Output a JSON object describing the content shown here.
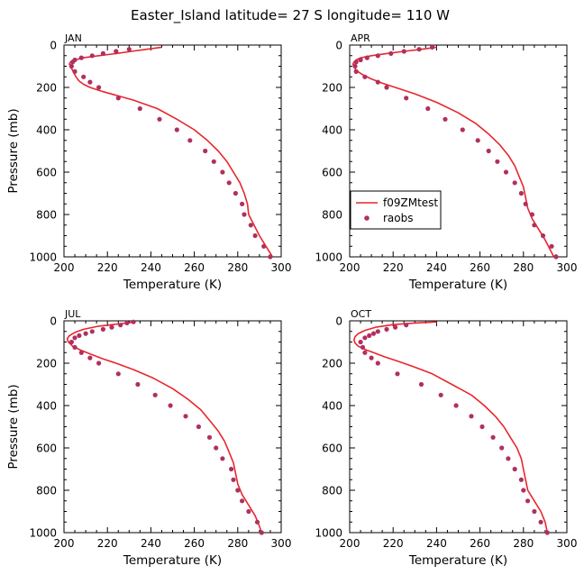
{
  "figure": {
    "title": "Easter_Island  latitude= 27 S longitude= 110 W",
    "colors": {
      "model": "#e8262b",
      "obs": "#b03060",
      "axes": "#000000"
    }
  },
  "chart_data": [
    {
      "type": "line",
      "title": "JAN",
      "xlabel": "Temperature (K)",
      "ylabel": "Pressure (mb)",
      "xlim": [
        200,
        300
      ],
      "ylim": [
        1000,
        0
      ],
      "xticks": [
        "200",
        "220",
        "240",
        "260",
        "280",
        "300"
      ],
      "yticks": [
        "0",
        "200",
        "400",
        "600",
        "800",
        "1000"
      ],
      "legend": null,
      "series": [
        {
          "kind": "line",
          "points": [
            [
              245,
              10
            ],
            [
              238,
              20
            ],
            [
              231,
              30
            ],
            [
              224,
              40
            ],
            [
              216,
              50
            ],
            [
              209,
              60
            ],
            [
              205,
              70
            ],
            [
              203,
              80
            ],
            [
              202.5,
              90
            ],
            [
              203,
              100
            ],
            [
              204,
              120
            ],
            [
              205.5,
              150
            ],
            [
              207,
              170
            ],
            [
              209,
              185
            ],
            [
              212,
              200
            ],
            [
              218,
              220
            ],
            [
              232,
              260
            ],
            [
              243,
              300
            ],
            [
              252,
              350
            ],
            [
              260,
              400
            ],
            [
              266,
              450
            ],
            [
              271,
              500
            ],
            [
              275,
              550
            ],
            [
              278,
              600
            ],
            [
              281,
              650
            ],
            [
              283,
              700
            ],
            [
              284.5,
              750
            ],
            [
              285,
              800
            ],
            [
              287.5,
              850
            ],
            [
              290,
              900
            ],
            [
              293,
              950
            ],
            [
              296,
              1000
            ]
          ]
        },
        {
          "kind": "scatter",
          "points": [
            [
              230,
              20
            ],
            [
              224,
              30
            ],
            [
              218,
              40
            ],
            [
              213,
              50
            ],
            [
              208,
              60
            ],
            [
              205,
              70
            ],
            [
              204,
              80
            ],
            [
              203.5,
              100
            ],
            [
              205,
              125
            ],
            [
              209,
              150
            ],
            [
              212,
              175
            ],
            [
              216,
              200
            ],
            [
              225,
              250
            ],
            [
              235,
              300
            ],
            [
              244,
              350
            ],
            [
              252,
              400
            ],
            [
              258,
              450
            ],
            [
              265,
              500
            ],
            [
              269,
              550
            ],
            [
              273,
              600
            ],
            [
              276,
              650
            ],
            [
              279,
              700
            ],
            [
              282,
              750
            ],
            [
              283,
              800
            ],
            [
              286,
              850
            ],
            [
              288,
              900
            ],
            [
              292,
              950
            ],
            [
              295,
              1000
            ]
          ]
        }
      ]
    },
    {
      "type": "line",
      "title": "APR",
      "xlabel": "Temperature (K)",
      "ylabel": "",
      "xlim": [
        200,
        300
      ],
      "ylim": [
        1000,
        0
      ],
      "xticks": [
        "200",
        "220",
        "240",
        "260",
        "280",
        "300"
      ],
      "yticks": [
        "0",
        "200",
        "400",
        "600",
        "800",
        "1000"
      ],
      "legend": {
        "placement": "bottom-left",
        "entries": [
          "f09ZMtest",
          "raobs"
        ]
      },
      "series": [
        {
          "name": "f09ZMtest",
          "kind": "line",
          "points": [
            [
              240,
              10
            ],
            [
              233,
              20
            ],
            [
              225,
              30
            ],
            [
              217,
              40
            ],
            [
              210,
              50
            ],
            [
              205,
              60
            ],
            [
              203,
              70
            ],
            [
              202,
              80
            ],
            [
              201.5,
              90
            ],
            [
              202,
              100
            ],
            [
              203,
              120
            ],
            [
              206,
              140
            ],
            [
              210,
              160
            ],
            [
              215,
              180
            ],
            [
              221,
              200
            ],
            [
              230,
              230
            ],
            [
              240,
              270
            ],
            [
              250,
              320
            ],
            [
              258,
              370
            ],
            [
              264,
              420
            ],
            [
              269,
              470
            ],
            [
              273,
              520
            ],
            [
              276,
              570
            ],
            [
              278,
              620
            ],
            [
              280,
              670
            ],
            [
              281,
              720
            ],
            [
              282,
              770
            ],
            [
              284,
              820
            ],
            [
              287,
              870
            ],
            [
              290,
              920
            ],
            [
              292.5,
              970
            ],
            [
              294,
              1000
            ]
          ]
        },
        {
          "name": "raobs",
          "kind": "scatter",
          "points": [
            [
              238,
              10
            ],
            [
              232,
              20
            ],
            [
              225,
              30
            ],
            [
              219,
              40
            ],
            [
              213,
              50
            ],
            [
              208,
              60
            ],
            [
              205,
              70
            ],
            [
              203,
              80
            ],
            [
              202.5,
              100
            ],
            [
              203,
              125
            ],
            [
              207,
              150
            ],
            [
              213,
              175
            ],
            [
              217,
              200
            ],
            [
              226,
              250
            ],
            [
              236,
              300
            ],
            [
              244,
              350
            ],
            [
              252,
              400
            ],
            [
              259,
              450
            ],
            [
              264,
              500
            ],
            [
              268,
              550
            ],
            [
              272,
              600
            ],
            [
              276,
              650
            ],
            [
              279,
              700
            ],
            [
              281,
              750
            ],
            [
              284,
              800
            ],
            [
              285,
              850
            ],
            [
              289,
              900
            ],
            [
              293,
              950
            ],
            [
              295,
              1000
            ]
          ]
        }
      ]
    },
    {
      "type": "line",
      "title": "JUL",
      "xlabel": "Temperature (K)",
      "ylabel": "Pressure (mb)",
      "xlim": [
        200,
        300
      ],
      "ylim": [
        1000,
        0
      ],
      "xticks": [
        "200",
        "220",
        "240",
        "260",
        "280",
        "300"
      ],
      "yticks": [
        "0",
        "200",
        "400",
        "600",
        "800",
        "1000"
      ],
      "legend": null,
      "series": [
        {
          "kind": "line",
          "points": [
            [
              233,
              5
            ],
            [
              225,
              15
            ],
            [
              216,
              25
            ],
            [
              209,
              40
            ],
            [
              205,
              55
            ],
            [
              202.5,
              70
            ],
            [
              201.5,
              85
            ],
            [
              202,
              100
            ],
            [
              204,
              120
            ],
            [
              208,
              140
            ],
            [
              213,
              160
            ],
            [
              218,
              180
            ],
            [
              224,
              200
            ],
            [
              232,
              230
            ],
            [
              241,
              270
            ],
            [
              250,
              320
            ],
            [
              257,
              370
            ],
            [
              263,
              420
            ],
            [
              267,
              470
            ],
            [
              271,
              520
            ],
            [
              274,
              570
            ],
            [
              276,
              620
            ],
            [
              278,
              670
            ],
            [
              279,
              720
            ],
            [
              280,
              770
            ],
            [
              282,
              820
            ],
            [
              285,
              870
            ],
            [
              288,
              920
            ],
            [
              290,
              970
            ],
            [
              291,
              1000
            ]
          ]
        },
        {
          "kind": "scatter",
          "points": [
            [
              232,
              5
            ],
            [
              229,
              10
            ],
            [
              226,
              20
            ],
            [
              222,
              30
            ],
            [
              218,
              40
            ],
            [
              213,
              50
            ],
            [
              210,
              60
            ],
            [
              207,
              70
            ],
            [
              205,
              80
            ],
            [
              203.5,
              100
            ],
            [
              205,
              125
            ],
            [
              208,
              150
            ],
            [
              212,
              175
            ],
            [
              216,
              200
            ],
            [
              225,
              250
            ],
            [
              234,
              300
            ],
            [
              242,
              350
            ],
            [
              249,
              400
            ],
            [
              256,
              450
            ],
            [
              262,
              500
            ],
            [
              267,
              550
            ],
            [
              270,
              600
            ],
            [
              273,
              650
            ],
            [
              277,
              700
            ],
            [
              278,
              750
            ],
            [
              280,
              800
            ],
            [
              282,
              850
            ],
            [
              285,
              900
            ],
            [
              289,
              950
            ],
            [
              291,
              1000
            ]
          ]
        }
      ]
    },
    {
      "type": "line",
      "title": "OCT",
      "xlabel": "Temperature (K)",
      "ylabel": "",
      "xlim": [
        200,
        300
      ],
      "ylim": [
        1000,
        0
      ],
      "xticks": [
        "200",
        "220",
        "240",
        "260",
        "280",
        "300"
      ],
      "yticks": [
        "0",
        "200",
        "400",
        "600",
        "800",
        "1000"
      ],
      "legend": null,
      "series": [
        {
          "kind": "line",
          "points": [
            [
              240,
              5
            ],
            [
              230,
              10
            ],
            [
              220,
              18
            ],
            [
              212,
              30
            ],
            [
              207,
              45
            ],
            [
              204,
              60
            ],
            [
              202.5,
              75
            ],
            [
              202,
              90
            ],
            [
              202.5,
              105
            ],
            [
              204,
              120
            ],
            [
              207,
              135
            ],
            [
              211,
              150
            ],
            [
              216,
              170
            ],
            [
              222,
              190
            ],
            [
              229,
              215
            ],
            [
              238,
              250
            ],
            [
              247,
              300
            ],
            [
              256,
              350
            ],
            [
              262,
              400
            ],
            [
              267,
              450
            ],
            [
              271,
              500
            ],
            [
              274,
              550
            ],
            [
              277,
              600
            ],
            [
              279,
              650
            ],
            [
              280,
              700
            ],
            [
              281,
              750
            ],
            [
              282,
              800
            ],
            [
              285,
              850
            ],
            [
              288,
              900
            ],
            [
              290,
              950
            ],
            [
              291,
              1000
            ]
          ]
        },
        {
          "kind": "scatter",
          "points": [
            [
              226,
              20
            ],
            [
              221,
              30
            ],
            [
              217,
              40
            ],
            [
              213,
              50
            ],
            [
              211,
              60
            ],
            [
              209,
              70
            ],
            [
              207,
              80
            ],
            [
              205,
              100
            ],
            [
              206,
              125
            ],
            [
              207,
              150
            ],
            [
              210,
              175
            ],
            [
              213,
              200
            ],
            [
              222,
              250
            ],
            [
              233,
              300
            ],
            [
              242,
              350
            ],
            [
              249,
              400
            ],
            [
              256,
              450
            ],
            [
              261,
              500
            ],
            [
              266,
              550
            ],
            [
              270,
              600
            ],
            [
              273,
              650
            ],
            [
              276,
              700
            ],
            [
              279,
              750
            ],
            [
              280,
              800
            ],
            [
              282,
              850
            ],
            [
              285,
              900
            ],
            [
              288,
              950
            ],
            [
              291,
              1000
            ]
          ]
        }
      ]
    }
  ]
}
